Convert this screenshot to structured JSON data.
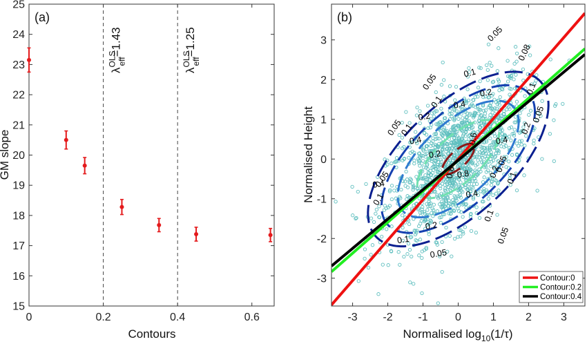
{
  "panels": {
    "a": {
      "tag": "(a)",
      "xlabel": "Contours",
      "ylabel": "GM slope"
    },
    "b": {
      "tag": "(b)",
      "xlabel": "Normalised log",
      "xlabel_sub": "10",
      "xlabel_tail": "(1/τ)",
      "ylabel": "Normalised Height"
    }
  },
  "chart_data": [
    {
      "type": "scatter",
      "title": "",
      "xlabel": "Contours",
      "ylabel": "GM slope",
      "xlim": [
        0,
        0.66
      ],
      "ylim": [
        15,
        25
      ],
      "xticks": [
        0,
        0.2,
        0.4,
        0.6
      ],
      "xticklabels": [
        "0",
        "0.2",
        "0.4",
        "0.6"
      ],
      "yticks": [
        15,
        16,
        17,
        18,
        19,
        20,
        21,
        22,
        23,
        24,
        25
      ],
      "yticklabels": [
        "15",
        "16",
        "17",
        "18",
        "19",
        "20",
        "21",
        "22",
        "23",
        "24",
        "25"
      ],
      "grid": false,
      "marker_color": "#e41a1c",
      "points": [
        {
          "x": 0.0,
          "y": 23.15,
          "err": 0.4
        },
        {
          "x": 0.1,
          "y": 20.5,
          "err": 0.3
        },
        {
          "x": 0.15,
          "y": 19.65,
          "err": 0.27
        },
        {
          "x": 0.25,
          "y": 18.28,
          "err": 0.25
        },
        {
          "x": 0.35,
          "y": 17.68,
          "err": 0.22
        },
        {
          "x": 0.45,
          "y": 17.38,
          "err": 0.23
        },
        {
          "x": 0.65,
          "y": 17.35,
          "err": 0.22
        }
      ],
      "vlines": [
        {
          "x": 0.2,
          "label_main": "λ",
          "label_sup": "OLS",
          "label_sub": "eff",
          "label_value": "=1.43"
        },
        {
          "x": 0.4,
          "label_main": "λ",
          "label_sup": "OLS",
          "label_sub": "eff",
          "label_value": "=1.25"
        }
      ]
    },
    {
      "type": "scatter",
      "title": "",
      "xlabel": "Normalised log10(1/τ)",
      "ylabel": "Normalised Height",
      "xlim": [
        -3.6,
        3.6
      ],
      "ylim": [
        -3.7,
        3.9
      ],
      "xticks": [
        -3,
        -2,
        -1,
        0,
        1,
        2,
        3
      ],
      "xticklabels": [
        "-3",
        "-2",
        "-1",
        "0",
        "1",
        "2",
        "3"
      ],
      "yticks": [
        -3,
        -2,
        -1,
        0,
        1,
        2,
        3
      ],
      "yticklabels": [
        "-3",
        "-2",
        "-1",
        "0",
        "1",
        "2",
        "3"
      ],
      "grid": false,
      "scatter_color": "#5fbfbf",
      "lines": [
        {
          "name": "Contour:0",
          "slope": 1.02,
          "intercept": 0.0,
          "color": "#ee1111"
        },
        {
          "name": "Contour:0.2",
          "slope": 0.78,
          "intercept": -0.03,
          "color": "#22ee22"
        },
        {
          "name": "Contour:0.4",
          "slope": 0.74,
          "intercept": -0.03,
          "color": "#000000"
        }
      ],
      "legend_position": "bottom-right",
      "contour_levels": [
        {
          "level": 0.05,
          "color": "#0a1f8f"
        },
        {
          "level": 0.1,
          "color": "#1540b0"
        },
        {
          "level": 0.2,
          "color": "#2f7ad0"
        },
        {
          "level": 0.4,
          "color": "#70e0b0"
        },
        {
          "level": 0.8,
          "color": "#8b1a1a"
        }
      ],
      "contour_labels": [
        {
          "text": "0.05",
          "x": 1.1,
          "y": 3.1,
          "angle": -45
        },
        {
          "text": "0.05",
          "x": -0.75,
          "y": 1.9,
          "angle": -55
        },
        {
          "text": "0.05",
          "x": -1.75,
          "y": 0.75,
          "angle": -55
        },
        {
          "text": "0.05",
          "x": -2.1,
          "y": -0.55,
          "angle": -55
        },
        {
          "text": "0.05",
          "x": 2.35,
          "y": 1.1,
          "angle": -70
        },
        {
          "text": "0.05",
          "x": 1.3,
          "y": -0.15,
          "angle": -70
        },
        {
          "text": "0.05",
          "x": 1.35,
          "y": -1.95,
          "angle": -70
        },
        {
          "text": "0.05",
          "x": -0.55,
          "y": -2.45,
          "angle": -10
        },
        {
          "text": "0.08",
          "x": 1.95,
          "y": 2.65,
          "angle": -65
        },
        {
          "text": "0.1",
          "x": 0.35,
          "y": 2.1,
          "angle": -15
        },
        {
          "text": "0.1",
          "x": -0.55,
          "y": 1.4,
          "angle": -55
        },
        {
          "text": "0.1",
          "x": -1.4,
          "y": 0.7,
          "angle": -55
        },
        {
          "text": "0.1",
          "x": 2.15,
          "y": 1.75,
          "angle": -70
        },
        {
          "text": "0.1",
          "x": 1.6,
          "y": -0.5,
          "angle": -70
        },
        {
          "text": "0.1",
          "x": 0.95,
          "y": -1.45,
          "angle": -70
        },
        {
          "text": "0.1",
          "x": -1.55,
          "y": -2.1,
          "angle": -10
        },
        {
          "text": "0.1",
          "x": -2.2,
          "y": -1.05,
          "angle": -60
        },
        {
          "text": "0.2",
          "x": 0.8,
          "y": 1.6,
          "angle": -10
        },
        {
          "text": "0.2",
          "x": -0.95,
          "y": 1.0,
          "angle": -10
        },
        {
          "text": "0.2",
          "x": -0.65,
          "y": 0.05,
          "angle": -10
        },
        {
          "text": "0.2",
          "x": 1.1,
          "y": -0.35,
          "angle": -70
        },
        {
          "text": "0.2",
          "x": 2.0,
          "y": 0.75,
          "angle": -70
        },
        {
          "text": "0.2",
          "x": -0.75,
          "y": -1.75,
          "angle": -10
        },
        {
          "text": "0.4",
          "x": 0.05,
          "y": 1.3,
          "angle": -10
        },
        {
          "text": "0.4",
          "x": -1.2,
          "y": 0.4,
          "angle": -10
        },
        {
          "text": "0.4",
          "x": 1.25,
          "y": 0.4,
          "angle": -10
        },
        {
          "text": "0.4",
          "x": -2.25,
          "y": -0.7,
          "angle": -10
        },
        {
          "text": "0.4",
          "x": 0.4,
          "y": -0.95,
          "angle": -10
        },
        {
          "text": "0.6",
          "x": 0.5,
          "y": 0.5,
          "angle": -80
        },
        {
          "text": "0.8",
          "x": 0.15,
          "y": -0.45,
          "angle": -10
        },
        {
          "text": "0.8",
          "x": -0.15,
          "y": -0.35,
          "angle": -80
        }
      ]
    }
  ]
}
